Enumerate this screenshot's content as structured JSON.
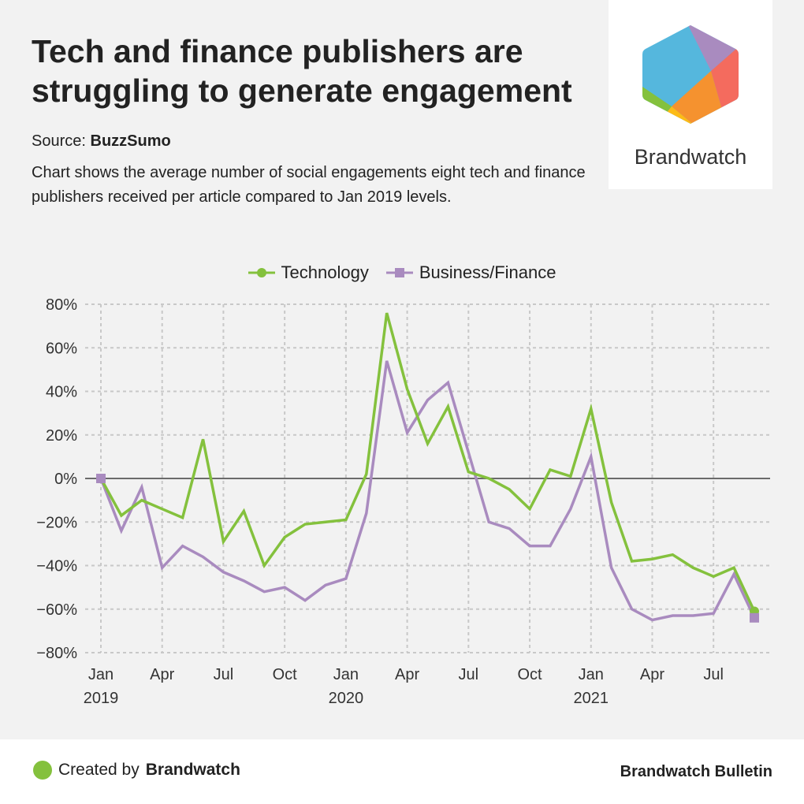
{
  "header": {
    "title": "Tech and finance publishers are struggling to generate engagement",
    "source_label": "Source:",
    "source_name": "BuzzSumo",
    "description": "Chart shows the average number of social engagements eight tech and finance publishers received per article compared to Jan 2019 levels."
  },
  "logo": {
    "text": "Brandwatch"
  },
  "footer": {
    "created_prefix": "Created by",
    "created_brand": "Brandwatch",
    "bulletin": "Brandwatch Bulletin"
  },
  "chart_data": {
    "type": "line",
    "title": "",
    "xlabel": "",
    "ylabel": "",
    "ylim": [
      -80,
      80
    ],
    "yticks": [
      80,
      60,
      40,
      20,
      0,
      -20,
      -40,
      -60,
      -80
    ],
    "ytick_labels": [
      "80%",
      "60%",
      "40%",
      "20%",
      "0%",
      "−20%",
      "−40%",
      "−60%",
      "−80%"
    ],
    "xtick_labels": [
      {
        "i": 0,
        "m": "Jan",
        "y": "2019"
      },
      {
        "i": 3,
        "m": "Apr",
        "y": ""
      },
      {
        "i": 6,
        "m": "Jul",
        "y": ""
      },
      {
        "i": 9,
        "m": "Oct",
        "y": ""
      },
      {
        "i": 12,
        "m": "Jan",
        "y": "2020"
      },
      {
        "i": 15,
        "m": "Apr",
        "y": ""
      },
      {
        "i": 18,
        "m": "Jul",
        "y": ""
      },
      {
        "i": 21,
        "m": "Oct",
        "y": ""
      },
      {
        "i": 24,
        "m": "Jan",
        "y": "2021"
      },
      {
        "i": 27,
        "m": "Apr",
        "y": ""
      },
      {
        "i": 30,
        "m": "Jul",
        "y": ""
      }
    ],
    "x_start": "Jan 2019",
    "x_end": "Sep 2021",
    "grid": true,
    "legend_position": "top-center",
    "series": [
      {
        "name": "Technology",
        "color": "#84c13d",
        "marker": "circle",
        "values": [
          0,
          -17,
          -10,
          -14,
          -18,
          18,
          -29,
          -15,
          -40,
          -27,
          -21,
          -20,
          -19,
          2,
          76,
          41,
          16,
          33,
          3,
          0,
          -5,
          -14,
          4,
          1,
          32,
          -11,
          -38,
          -37,
          -35,
          -41,
          -45,
          -41,
          -61
        ]
      },
      {
        "name": "Business/Finance",
        "color": "#a98bbf",
        "marker": "square",
        "values": [
          0,
          -24,
          -4,
          -41,
          -31,
          -36,
          -43,
          -47,
          -52,
          -50,
          -56,
          -49,
          -46,
          -16,
          54,
          21,
          36,
          44,
          12,
          -20,
          -23,
          -31,
          -31,
          -14,
          10,
          -41,
          -60,
          -65,
          -63,
          -63,
          -62,
          -44,
          -64
        ]
      }
    ]
  }
}
